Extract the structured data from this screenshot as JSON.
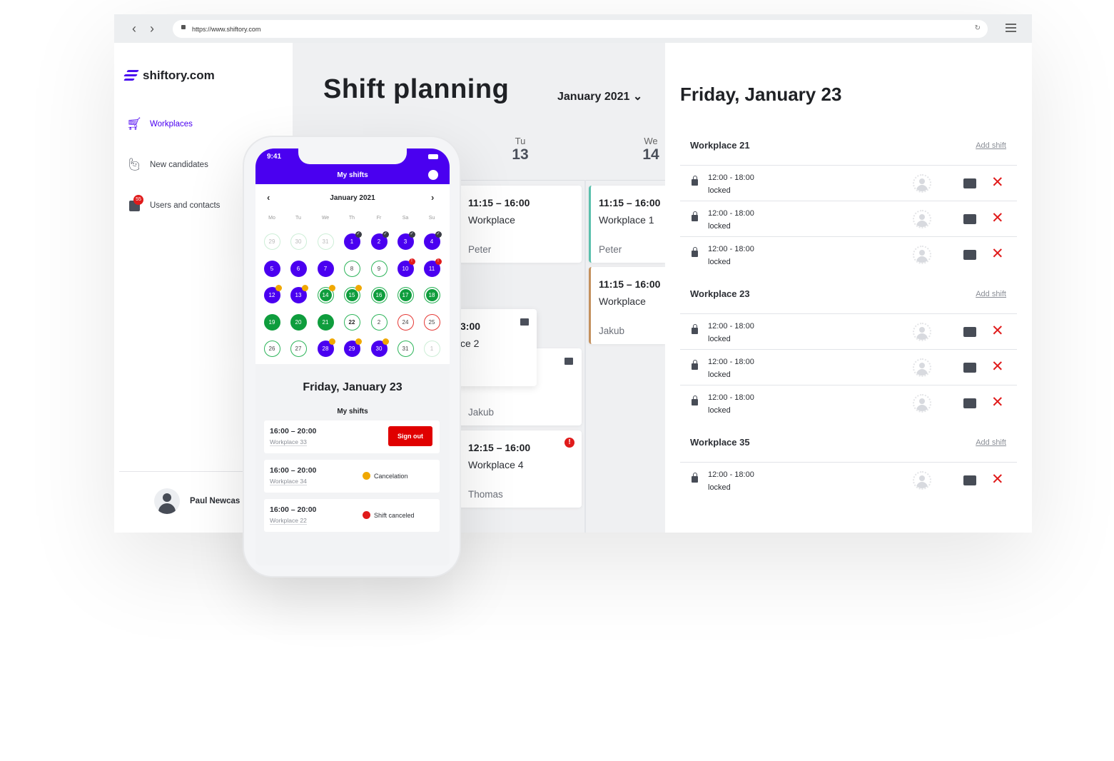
{
  "browser": {
    "url": "https://www.shiftory.com",
    "back": "‹",
    "forward": "›",
    "reload": "↻"
  },
  "sidebar": {
    "logo": "shiftory.com",
    "items": [
      {
        "label": "Workplaces",
        "icon": "cart-icon",
        "active": true
      },
      {
        "label": "New candidates",
        "icon": "person-waving-icon"
      },
      {
        "label": "Users and contacts",
        "icon": "contacts-icon",
        "badge": "55"
      }
    ],
    "user": "Paul Newcas"
  },
  "main": {
    "title": "Shift planning",
    "month": "January 2021 ⌄",
    "days": [
      {
        "name": "Tu",
        "num": "13"
      },
      {
        "name": "We",
        "num": "14"
      }
    ],
    "cards": [
      {
        "time": "11:15 – 16:00",
        "place": "Workplace",
        "person": "Peter"
      },
      {
        "time": "3:00",
        "place": "ce 2",
        "person": ""
      },
      {
        "time": "",
        "place": "",
        "person": "Jakub"
      },
      {
        "time": "12:15 – 16:00",
        "place": "Workplace 4",
        "person": "Thomas"
      },
      {
        "time": "11:15 – 16:00",
        "place": "Workplace 1",
        "person": "Peter",
        "accent": "#5bc0ad"
      },
      {
        "time": "11:15 – 16:00",
        "place": "Workplace",
        "person": "Jakub",
        "accent": "#c4915e"
      }
    ]
  },
  "panel": {
    "title": "Friday, January 23",
    "add_label": "Add shift",
    "groups": [
      {
        "name": "Workplace 21",
        "shifts": [
          {
            "time": "12:00 - 18:00",
            "status": "locked"
          },
          {
            "time": "12:00 - 18:00",
            "status": "locked"
          },
          {
            "time": "12:00 - 18:00",
            "status": "locked"
          }
        ]
      },
      {
        "name": "Workplace 23",
        "shifts": [
          {
            "time": "12:00 - 18:00",
            "status": "locked"
          },
          {
            "time": "12:00 - 18:00",
            "status": "locked"
          },
          {
            "time": "12:00 - 18:00",
            "status": "locked"
          }
        ]
      },
      {
        "name": "Workplace 35",
        "shifts": [
          {
            "time": "12:00 - 18:00",
            "status": "locked"
          }
        ]
      }
    ]
  },
  "phone": {
    "time": "9:41",
    "title": "My shifts",
    "month": "January 2021",
    "weekdays": [
      "Mo",
      "Tu",
      "We",
      "Th",
      "Fr",
      "Sa",
      "Su"
    ],
    "days": [
      {
        "d": "29",
        "s": "faded"
      },
      {
        "d": "30",
        "s": "faded"
      },
      {
        "d": "31",
        "s": "faded"
      },
      {
        "d": "1",
        "s": "purple",
        "b": "check"
      },
      {
        "d": "2",
        "s": "purple",
        "b": "check"
      },
      {
        "d": "3",
        "s": "purple",
        "b": "check"
      },
      {
        "d": "4",
        "s": "purple",
        "b": "check"
      },
      {
        "d": "5",
        "s": "purple"
      },
      {
        "d": "6",
        "s": "purple"
      },
      {
        "d": "7",
        "s": "purple"
      },
      {
        "d": "8",
        "s": "outline"
      },
      {
        "d": "9",
        "s": "outline"
      },
      {
        "d": "10",
        "s": "purple",
        "b": "alert"
      },
      {
        "d": "11",
        "s": "purple",
        "b": "alert"
      },
      {
        "d": "12",
        "s": "purple",
        "b": "clock"
      },
      {
        "d": "13",
        "s": "purple",
        "b": "clock"
      },
      {
        "d": "14",
        "s": "ring",
        "b": "clock"
      },
      {
        "d": "15",
        "s": "ring",
        "b": "clock"
      },
      {
        "d": "16",
        "s": "ring"
      },
      {
        "d": "17",
        "s": "ring"
      },
      {
        "d": "18",
        "s": "ring"
      },
      {
        "d": "19",
        "s": "green"
      },
      {
        "d": "20",
        "s": "green"
      },
      {
        "d": "21",
        "s": "green"
      },
      {
        "d": "22",
        "s": "bold"
      },
      {
        "d": "2",
        "s": "outline"
      },
      {
        "d": "24",
        "s": "red"
      },
      {
        "d": "25",
        "s": "red"
      },
      {
        "d": "26",
        "s": "outline"
      },
      {
        "d": "27",
        "s": "outline"
      },
      {
        "d": "28",
        "s": "purple",
        "b": "clock"
      },
      {
        "d": "29",
        "s": "purple",
        "b": "clock"
      },
      {
        "d": "30",
        "s": "purple",
        "b": "clock"
      },
      {
        "d": "31",
        "s": "outline"
      },
      {
        "d": "1",
        "s": "faded"
      }
    ],
    "day_title": "Friday, January 23",
    "sub": "My shifts",
    "shifts": [
      {
        "time": "16:00 – 20:00",
        "place": "Workplace 33",
        "action": "Sign out"
      },
      {
        "time": "16:00 – 20:00",
        "place": "Workplace 34",
        "status": "Cancelation",
        "status_color": "#f0a800"
      },
      {
        "time": "16:00 – 20:00",
        "place": "Workplace 22",
        "status": "Shift canceled",
        "status_color": "#e01b1b"
      }
    ]
  },
  "colors": {
    "brand": "#4a00f0",
    "green": "#0f9d3d",
    "danger": "#e01b1b",
    "warning": "#f0a800"
  }
}
